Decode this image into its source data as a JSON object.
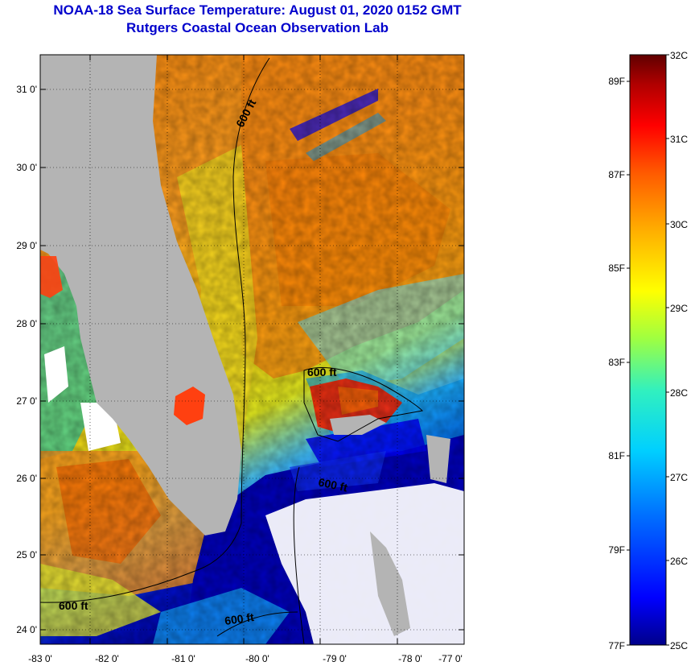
{
  "header": {
    "title": "NOAA-18 Sea Surface Temperature:  August 01, 2020 0152 GMT",
    "subtitle": "Rutgers Coastal Ocean Observation Lab"
  },
  "map": {
    "lon_ticks": [
      "-83 0'",
      "-82 0'",
      "-81 0'",
      "-80 0'",
      "-79 0'",
      "-78 0'",
      "-77 0'"
    ],
    "lat_ticks": [
      "31 0'",
      "30 0'",
      "29 0'",
      "28 0'",
      "27 0'",
      "26 0'",
      "25 0'",
      "24 0'"
    ],
    "contour_labels": [
      "600 ft",
      "600 ft",
      "600 ft",
      "600 ft",
      "600 ft"
    ]
  },
  "colorbar": {
    "celsius": [
      "32C",
      "31C",
      "30C",
      "29C",
      "28C",
      "27C",
      "26C",
      "25C"
    ],
    "fahrenheit": [
      "89F",
      "87F",
      "85F",
      "83F",
      "81F",
      "79F",
      "77F"
    ],
    "colors": [
      "#0000a0",
      "#0000ff",
      "#0080ff",
      "#00e0ff",
      "#40ffb0",
      "#c0ff40",
      "#ffff00",
      "#ffb000",
      "#ff6000",
      "#ff1000",
      "#c00000",
      "#600000"
    ]
  },
  "colors": {
    "land": "#b4b4b4",
    "no_data": "#ffffff",
    "title": "#0000cc"
  }
}
